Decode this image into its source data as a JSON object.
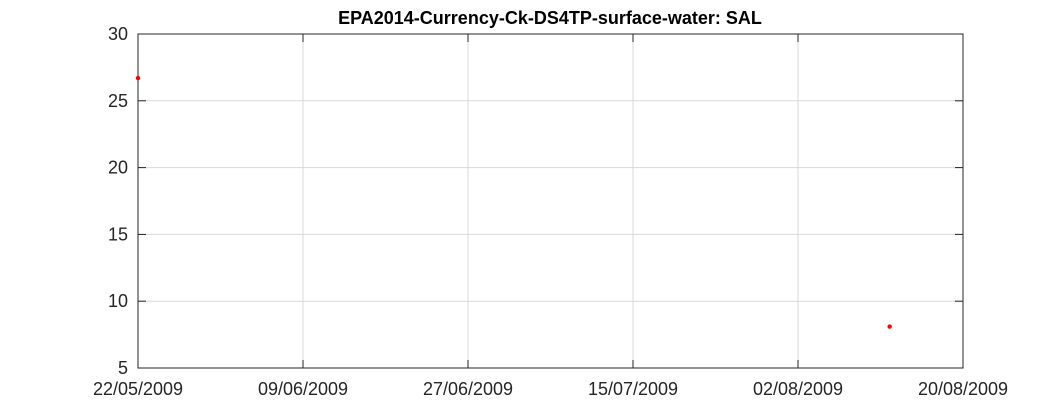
{
  "chart_data": {
    "type": "scatter",
    "title": "EPA2014-Currency-Ck-DS4TP-surface-water: SAL",
    "xlabel": "",
    "ylabel": "",
    "x_ticks": [
      "22/05/2009",
      "09/06/2009",
      "27/06/2009",
      "15/07/2009",
      "02/08/2009",
      "20/08/2009"
    ],
    "xlim_days": [
      0,
      90
    ],
    "y_ticks": [
      "5",
      "10",
      "15",
      "20",
      "25",
      "30"
    ],
    "ylim": [
      5,
      30
    ],
    "grid": true,
    "series": [
      {
        "name": "SAL",
        "color": "#ff0000",
        "points": [
          {
            "date": "22/05/2009",
            "day": 0,
            "value": 26.7
          },
          {
            "date": "12/08/2009",
            "day": 82,
            "value": 8.1
          }
        ]
      }
    ]
  }
}
